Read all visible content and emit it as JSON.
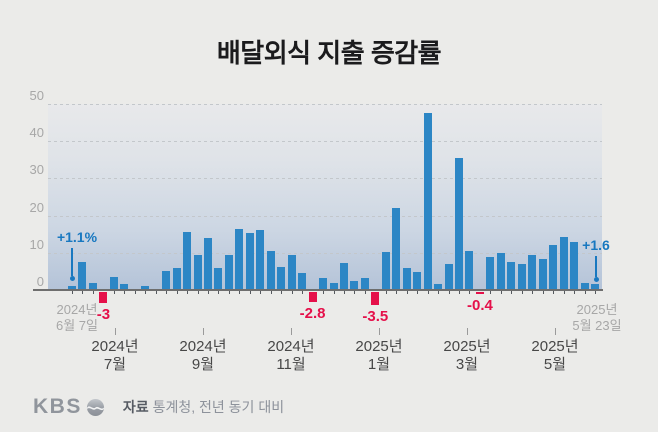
{
  "title": "배달외식 지출 증감률",
  "y_axis": {
    "ticks": [
      50,
      40,
      30,
      20,
      10,
      0
    ]
  },
  "x_axis": {
    "start_label": [
      "2024년",
      "6월 7일"
    ],
    "end_label": [
      "2025년",
      "5월 23일"
    ],
    "month_labels": [
      [
        "2024년",
        "7월"
      ],
      [
        "2024년",
        "9월"
      ],
      [
        "2024년",
        "11월"
      ],
      [
        "2025년",
        "1월"
      ],
      [
        "2025년",
        "3월"
      ],
      [
        "2025년",
        "5월"
      ]
    ]
  },
  "annotations": {
    "first_value": "+1.1%",
    "last_value": "+1.6"
  },
  "negative_label_map": {
    "3": "-3",
    "23": "-2.8",
    "29": "-3.5",
    "39": "-0.4"
  },
  "footer": {
    "logo": "KBS",
    "source_prefix": "자료",
    "source_text": "통계청, 전년 동기 대비"
  },
  "colors": {
    "bar": "#2c86c5",
    "negative": "#e5104a",
    "annotation": "#1878c0",
    "axis": "#6e6e6e",
    "background": "#ebebe9"
  },
  "chart_data": {
    "type": "bar",
    "title": "배달외식 지출 증감률",
    "unit": "%",
    "period_start": "2024년 6월 7일",
    "period_end": "2025년 5월 23일",
    "ylim": [
      -5,
      50
    ],
    "yticks": [
      0,
      10,
      20,
      30,
      40,
      50
    ],
    "grid": true,
    "values": [
      1.1,
      7.5,
      2.0,
      -3.0,
      3.5,
      1.6,
      0.4,
      1.2,
      0.4,
      5.0,
      6.0,
      15.5,
      9.5,
      14.0,
      5.8,
      9.4,
      16.5,
      15.3,
      16.0,
      10.5,
      6.3,
      9.4,
      4.5,
      -2.8,
      3.3,
      1.8,
      7.3,
      2.5,
      3.1,
      -3.5,
      10.3,
      22.0,
      5.8,
      4.9,
      47.5,
      1.5,
      6.9,
      35.5,
      10.5,
      -0.4,
      8.8,
      10.0,
      7.5,
      7.0,
      9.3,
      8.3,
      12.2,
      14.2,
      13.0,
      1.8,
      1.6
    ],
    "negative_indices": [
      3,
      23,
      29,
      39
    ],
    "labeled_points": {
      "first": "+1.1%",
      "last": "+1.6",
      "negatives": [
        "-3",
        "-2.8",
        "-3.5",
        "-0.4"
      ]
    }
  }
}
